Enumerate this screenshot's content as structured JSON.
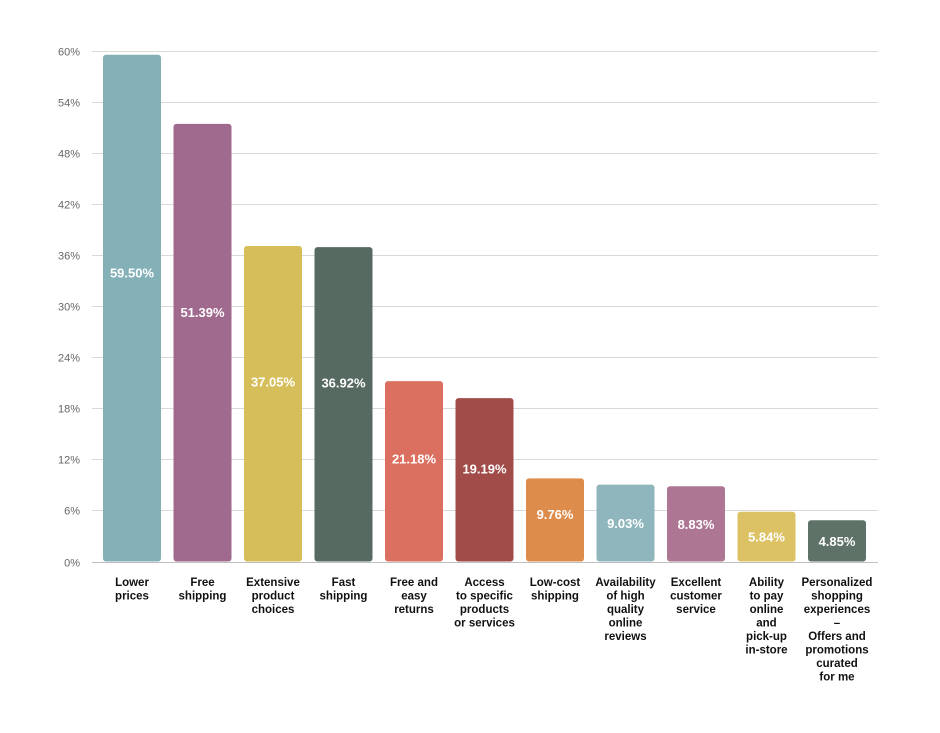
{
  "chart_data": {
    "type": "bar",
    "categories": [
      [
        "Lower",
        "prices"
      ],
      [
        "Free",
        "shipping"
      ],
      [
        "Extensive",
        "product",
        "choices"
      ],
      [
        "Fast",
        "shipping"
      ],
      [
        "Free and",
        "easy",
        "returns"
      ],
      [
        "Access",
        "to specific",
        "products",
        "or services"
      ],
      [
        "Low-cost",
        "shipping"
      ],
      [
        "Availability",
        "of high",
        "quality",
        "online",
        "reviews"
      ],
      [
        "Excellent",
        "customer",
        "service"
      ],
      [
        "Ability",
        "to pay",
        "online",
        "and",
        "pick-up",
        "in-store"
      ],
      [
        "Personalized",
        "shopping",
        "experiences",
        "–",
        "Offers and",
        "promotions",
        "curated",
        "for me"
      ]
    ],
    "values": [
      59.5,
      51.39,
      37.05,
      36.92,
      21.18,
      19.19,
      9.76,
      9.03,
      8.83,
      5.84,
      4.85
    ],
    "data_labels": [
      "59.50%",
      "51.39%",
      "37.05%",
      "36.92%",
      "21.18%",
      "19.19%",
      "9.76%",
      "9.03%",
      "8.83%",
      "5.84%",
      "4.85%"
    ],
    "colors": [
      "#84b0b8",
      "#a06a8e",
      "#d6bf5b",
      "#566a62",
      "#dc7060",
      "#a24c4a",
      "#de8c4c",
      "#8fb6bd",
      "#ad7794",
      "#dcc265",
      "#5e7268"
    ],
    "yticks": [
      "0%",
      "6%",
      "12%",
      "18%",
      "24%",
      "30%",
      "36%",
      "42%",
      "48%",
      "54%",
      "60%"
    ],
    "ylim": [
      0,
      60
    ],
    "grid": true,
    "title": "",
    "xlabel": "",
    "ylabel": ""
  }
}
